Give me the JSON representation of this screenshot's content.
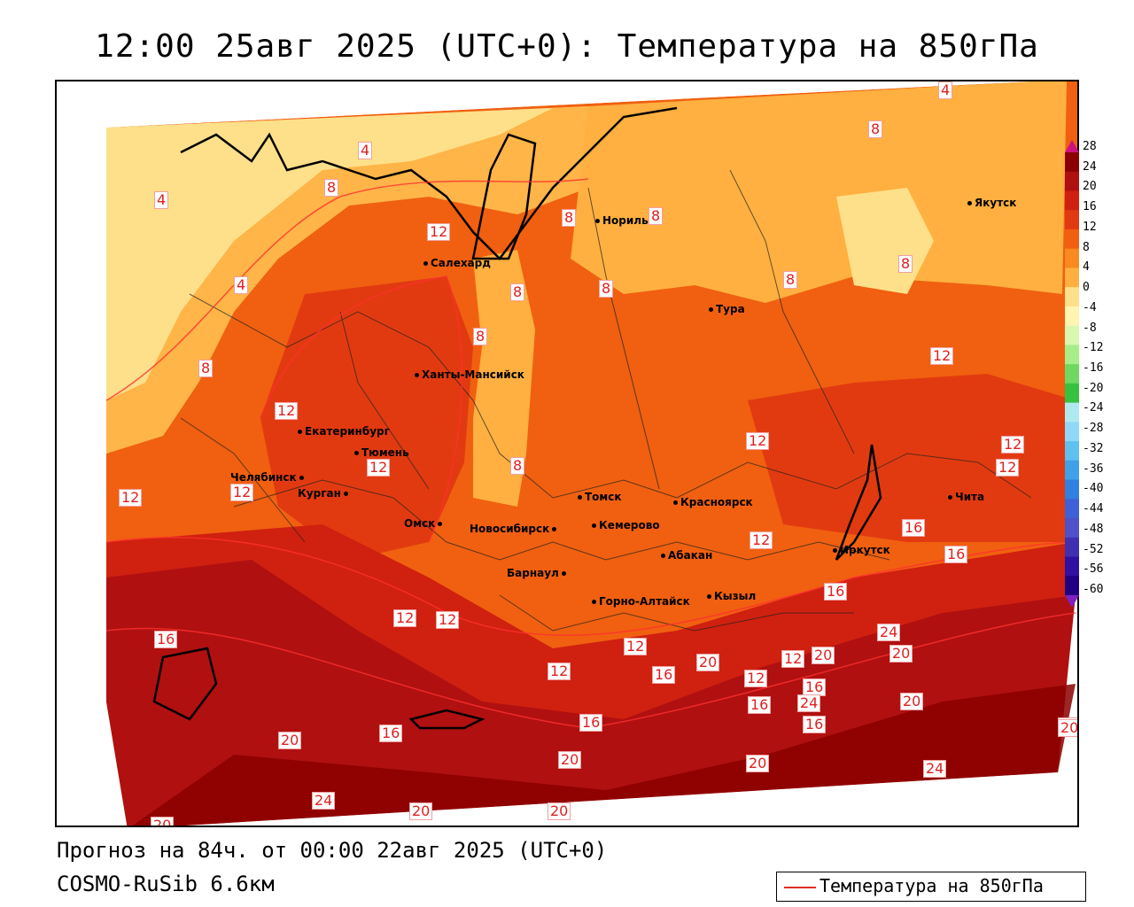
{
  "title": "12:00 25авг 2025 (UTC+0): Температура на 850гПа",
  "footer": {
    "forecast": "Прогноз на 84ч. от 00:00 22авг 2025 (UTC+0)",
    "model": "COSMO-RuSib 6.6км"
  },
  "legend": {
    "label": "Температура на 850гПа",
    "line_color": "#e03020"
  },
  "colorbar": {
    "ticks": [
      "28",
      "24",
      "20",
      "16",
      "12",
      "8",
      "4",
      "0",
      "-4",
      "-8",
      "-12",
      "-16",
      "-20",
      "-24",
      "-28",
      "-32",
      "-36",
      "-40",
      "-44",
      "-48",
      "-52",
      "-56",
      "-60"
    ],
    "colors": [
      "#8b0000",
      "#b01010",
      "#d02010",
      "#e23a10",
      "#f06010",
      "#f88a20",
      "#ffb040",
      "#ffe08a",
      "#fff4b0",
      "#d8f8b0",
      "#a8ee88",
      "#70d860",
      "#38c040",
      "#b0e8f0",
      "#90d8f8",
      "#60c0f0",
      "#40a0e8",
      "#3080e0",
      "#4060d8",
      "#5050c8",
      "#4030b0",
      "#3010a0",
      "#200080"
    ]
  },
  "cities": [
    {
      "name": "Якутск"
    },
    {
      "name": "Норильск"
    },
    {
      "name": "Салехард"
    },
    {
      "name": "Тура"
    },
    {
      "name": "Ханты-Мансийск"
    },
    {
      "name": "Екатеринбург"
    },
    {
      "name": "Тюмень"
    },
    {
      "name": "Челябинск"
    },
    {
      "name": "Курган"
    },
    {
      "name": "Омск"
    },
    {
      "name": "Томск"
    },
    {
      "name": "Новосибирск"
    },
    {
      "name": "Кемерово"
    },
    {
      "name": "Красноярск"
    },
    {
      "name": "Барнаул"
    },
    {
      "name": "Абакан"
    },
    {
      "name": "Иркутск"
    },
    {
      "name": "Чита"
    },
    {
      "name": "Горно-Алтайск"
    },
    {
      "name": "Кызыл"
    }
  ],
  "contour_labels": [
    "4",
    "4",
    "4",
    "4",
    "8",
    "8",
    "8",
    "8",
    "8",
    "8",
    "8",
    "8",
    "8",
    "8",
    "8",
    "12",
    "12",
    "12",
    "12",
    "12",
    "12",
    "12",
    "12",
    "12",
    "12",
    "12",
    "12",
    "12",
    "12",
    "12",
    "12",
    "16",
    "16",
    "16",
    "16",
    "16",
    "16",
    "16",
    "16",
    "16",
    "16",
    "20",
    "20",
    "20",
    "20",
    "20",
    "20",
    "20",
    "20",
    "20",
    "20",
    "20",
    "20",
    "24",
    "24",
    "24",
    "24",
    "24"
  ]
}
